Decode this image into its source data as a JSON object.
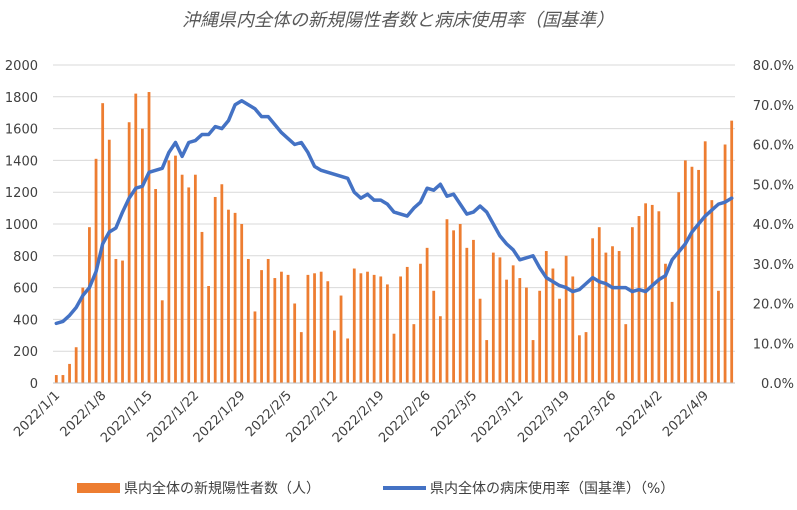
{
  "chart_data": {
    "type": "bar+line",
    "title": "沖縄県内全体の新規陽性者数と病床使用率（国基準）",
    "y_left": {
      "min": 0,
      "max": 2000,
      "step": 200,
      "ticks": [
        "0",
        "200",
        "400",
        "600",
        "800",
        "1000",
        "1200",
        "1400",
        "1600",
        "1800",
        "2000"
      ]
    },
    "y_right": {
      "min": 0,
      "max": 80,
      "step": 10,
      "ticks": [
        "0.0%",
        "10.0%",
        "20.0%",
        "30.0%",
        "40.0%",
        "50.0%",
        "60.0%",
        "70.0%",
        "80.0%"
      ]
    },
    "x_labels": [
      "2022/1/1",
      "2022/1/8",
      "2022/1/15",
      "2022/1/22",
      "2022/1/29",
      "2022/2/5",
      "2022/2/12",
      "2022/2/19",
      "2022/2/26",
      "2022/3/5",
      "2022/3/12",
      "2022/3/19",
      "2022/3/26",
      "2022/4/2",
      "2022/4/9"
    ],
    "grid": true,
    "legend_position": "bottom",
    "colors": {
      "bars": "#ed7d31",
      "line": "#4472c4"
    },
    "series": [
      {
        "name": "県内全体の新規陽性者数（人）",
        "type": "bar",
        "axis": "left",
        "values": [
          50,
          50,
          120,
          225,
          600,
          980,
          1410,
          1760,
          1530,
          780,
          770,
          1640,
          1820,
          1600,
          1830,
          1220,
          520,
          1400,
          1430,
          1310,
          1230,
          1310,
          950,
          610,
          1170,
          1250,
          1090,
          1070,
          1000,
          780,
          450,
          710,
          780,
          660,
          700,
          680,
          500,
          320,
          680,
          690,
          700,
          640,
          330,
          550,
          280,
          720,
          690,
          700,
          680,
          670,
          620,
          310,
          670,
          730,
          370,
          750,
          850,
          580,
          420,
          1030,
          960,
          1000,
          850,
          900,
          530,
          270,
          820,
          790,
          650,
          740,
          660,
          600,
          270,
          580,
          830,
          720,
          530,
          800,
          670,
          300,
          320,
          910,
          980,
          820,
          860,
          830,
          370,
          980,
          1050,
          1130,
          1120,
          1080,
          750,
          510,
          1200,
          1400,
          1360,
          1340,
          1520,
          1150,
          580,
          1500,
          1650
        ]
      },
      {
        "name": "県内全体の病床使用率（国基準）（%）",
        "type": "line",
        "axis": "right",
        "values": [
          15.0,
          15.5,
          17.0,
          19.0,
          22.0,
          24.0,
          28.0,
          35.0,
          38.0,
          39.0,
          43.0,
          46.5,
          49.0,
          49.5,
          53.0,
          53.5,
          54.0,
          58.0,
          60.5,
          57.0,
          60.5,
          61.0,
          62.5,
          62.5,
          64.5,
          64.0,
          66.0,
          70.0,
          71.0,
          70.0,
          69.0,
          67.0,
          67.0,
          65.0,
          63.0,
          61.5,
          60.0,
          60.5,
          58.0,
          54.5,
          53.5,
          53.0,
          52.5,
          52.0,
          51.5,
          48.0,
          46.5,
          47.5,
          46.0,
          46.0,
          45.0,
          43.0,
          42.5,
          42.0,
          44.0,
          45.5,
          49.0,
          48.5,
          50.0,
          47.0,
          47.5,
          45.0,
          42.5,
          43.0,
          44.5,
          43.0,
          40.0,
          37.0,
          35.0,
          33.5,
          31.0,
          31.5,
          32.0,
          29.0,
          26.5,
          25.5,
          24.5,
          24.0,
          23.0,
          23.5,
          25.0,
          26.5,
          25.5,
          25.0,
          24.0,
          24.0,
          24.0,
          23.0,
          23.5,
          23.0,
          24.5,
          26.0,
          27.0,
          31.0,
          33.0,
          35.0,
          38.0,
          40.0,
          42.0,
          43.5,
          45.0,
          45.5,
          46.5
        ]
      }
    ]
  }
}
